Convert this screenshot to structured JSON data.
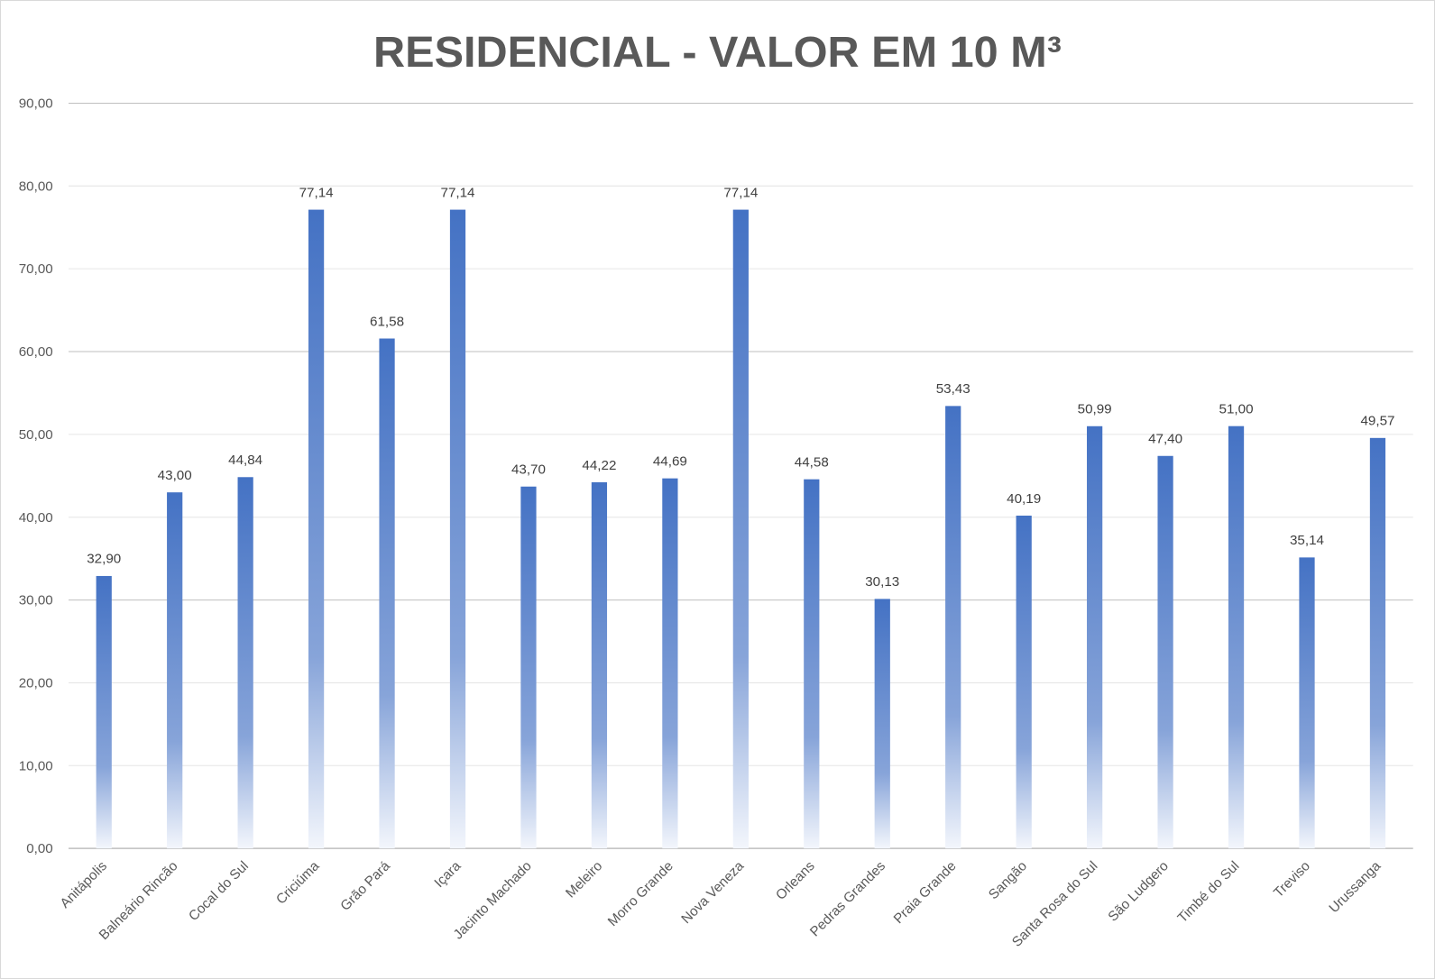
{
  "chart_data": {
    "type": "bar",
    "title": "RESIDENCIAL - VALOR EM 10 M³",
    "xlabel": "",
    "ylabel": "",
    "ylim": [
      0,
      90
    ],
    "yticks": [
      "0,00",
      "10,00",
      "20,00",
      "30,00",
      "40,00",
      "50,00",
      "60,00",
      "70,00",
      "80,00",
      "90,00"
    ],
    "grid": true,
    "bar_color": "#4472C4",
    "categories": [
      "Anitápolis",
      "Balneário Rincão",
      "Cocal do Sul",
      "Criciúma",
      "Grão Pará",
      "Içara",
      "Jacinto Machado",
      "Meleiro",
      "Morro Grande",
      "Nova Veneza",
      "Orleans",
      "Pedras Grandes",
      "Praia Grande",
      "Sangão",
      "Santa Rosa do Sul",
      "São Ludgero",
      "Timbé do Sul",
      "Treviso",
      "Urussanga"
    ],
    "values": [
      32.9,
      43.0,
      44.84,
      77.14,
      61.58,
      77.14,
      43.7,
      44.22,
      44.69,
      77.14,
      44.58,
      30.13,
      53.43,
      40.19,
      50.99,
      47.4,
      51.0,
      35.14,
      49.57
    ],
    "value_labels": [
      "32,90",
      "43,00",
      "44,84",
      "77,14",
      "61,58",
      "77,14",
      "43,70",
      "44,22",
      "44,69",
      "77,14",
      "44,58",
      "30,13",
      "53,43",
      "40,19",
      "50,99",
      "47,40",
      "51,00",
      "35,14",
      "49,57"
    ]
  }
}
